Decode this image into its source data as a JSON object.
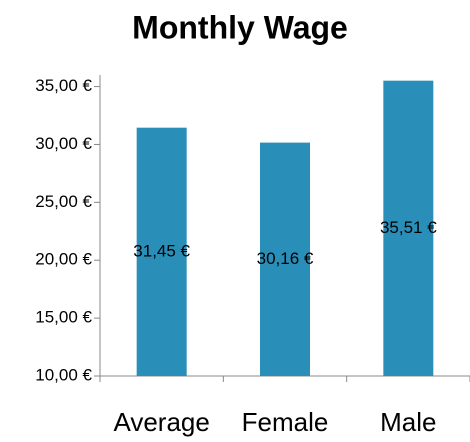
{
  "chart_data": {
    "type": "bar",
    "title": "Monthly Wage",
    "categories": [
      "Average",
      "Female",
      "Male"
    ],
    "values": [
      31.45,
      30.16,
      35.51
    ],
    "value_labels": [
      "31,45 €",
      "30,16 €",
      "35,51 €"
    ],
    "color": "#2a8fb8",
    "ylim": [
      10,
      36
    ],
    "yticks": [
      {
        "value": 10,
        "label": "10,00 €"
      },
      {
        "value": 15,
        "label": "15,00 €"
      },
      {
        "value": 20,
        "label": "20,00 €"
      },
      {
        "value": 25,
        "label": "25,00 €"
      },
      {
        "value": 30,
        "label": "30,00 €"
      },
      {
        "value": 35,
        "label": "35,00 €"
      }
    ],
    "grid": false
  }
}
